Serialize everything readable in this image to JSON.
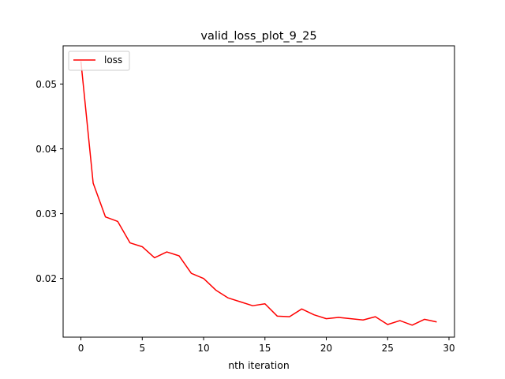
{
  "chart_data": {
    "type": "line",
    "title": "valid_loss_plot_9_25",
    "xlabel": "nth iteration",
    "ylabel": "",
    "xlim": [
      -1.45,
      30.45
    ],
    "ylim": [
      0.01095,
      0.0559
    ],
    "x_ticks": [
      0,
      5,
      10,
      15,
      20,
      25,
      30
    ],
    "y_ticks": [
      0.02,
      0.03,
      0.04,
      0.05
    ],
    "x_tick_labels": [
      "0",
      "5",
      "10",
      "15",
      "20",
      "25",
      "30"
    ],
    "y_tick_labels": [
      "0.02",
      "0.03",
      "0.04",
      "0.05"
    ],
    "grid": false,
    "legend_position": "top-left",
    "series": [
      {
        "name": "loss",
        "color": "#ff0000",
        "x": [
          0,
          1,
          2,
          3,
          4,
          5,
          6,
          7,
          8,
          9,
          10,
          11,
          12,
          13,
          14,
          15,
          16,
          17,
          18,
          19,
          20,
          21,
          22,
          23,
          24,
          25,
          26,
          27,
          28,
          29
        ],
        "values": [
          0.0535,
          0.0347,
          0.0295,
          0.0288,
          0.0255,
          0.0249,
          0.0232,
          0.0241,
          0.0235,
          0.0208,
          0.02,
          0.0182,
          0.017,
          0.0164,
          0.0158,
          0.0161,
          0.0142,
          0.0141,
          0.0153,
          0.0144,
          0.0138,
          0.014,
          0.0138,
          0.0136,
          0.0141,
          0.0129,
          0.0135,
          0.0128,
          0.0137,
          0.0133
        ]
      }
    ]
  }
}
